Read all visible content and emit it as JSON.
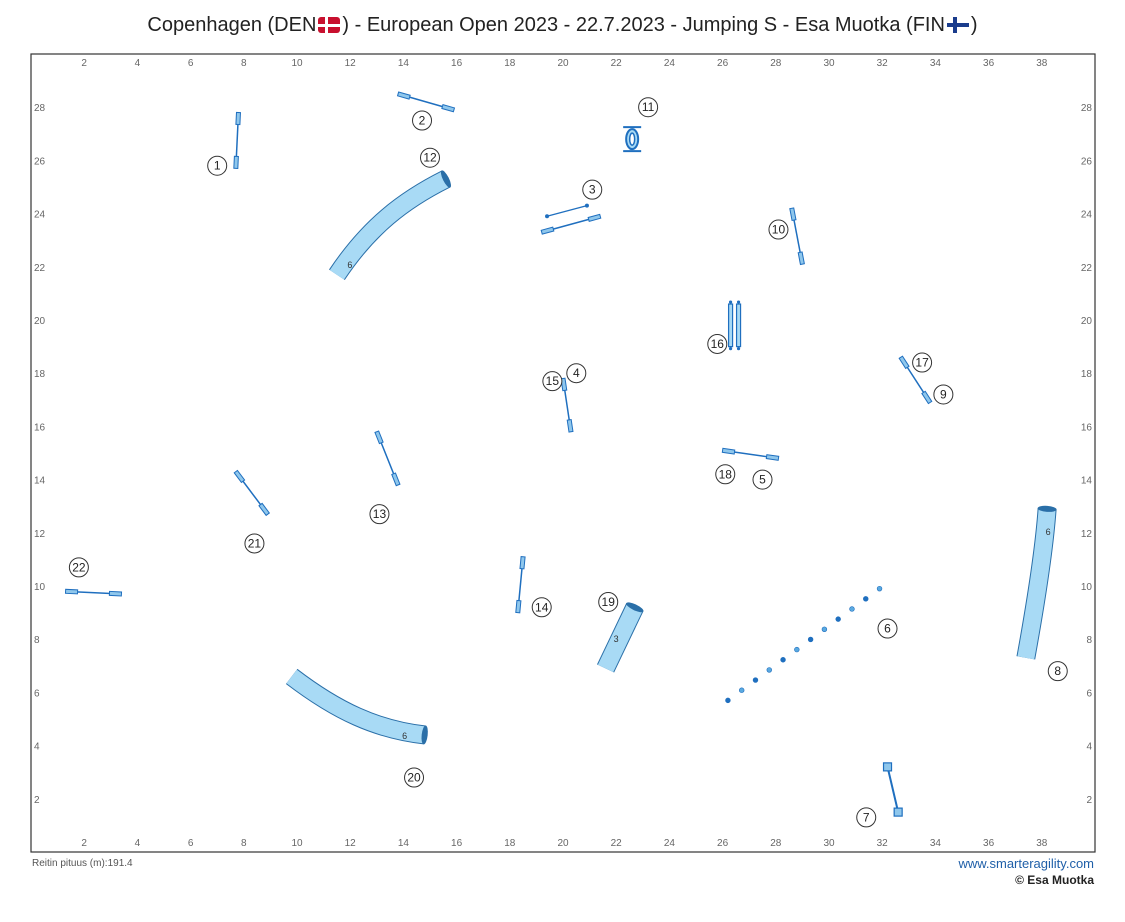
{
  "header": {
    "title_part1": "Copenhagen (DEN",
    "title_part2": ") - European Open 2023 - 22.7.2023 - Jumping S - Esa Muotka (FIN",
    "title_part3": ")",
    "flag1": "den-flag-icon",
    "flag2": "fin-flag-icon"
  },
  "colors": {
    "accent": "#1f6fbf",
    "tunnel_fill": "#a8daf5",
    "grid_border": "#333333"
  },
  "axes": {
    "x_ticks": [
      "2",
      "4",
      "6",
      "8",
      "10",
      "12",
      "14",
      "16",
      "18",
      "20",
      "22",
      "24",
      "26",
      "28",
      "30",
      "32",
      "34",
      "36",
      "38"
    ],
    "y_ticks": [
      "2",
      "4",
      "6",
      "8",
      "10",
      "12",
      "14",
      "16",
      "18",
      "20",
      "22",
      "24",
      "26",
      "28"
    ],
    "x_range": [
      0,
      40
    ],
    "y_range": [
      0,
      30
    ],
    "units": "m"
  },
  "numbers": [
    {
      "label": "1",
      "x": 7.0,
      "y": 25.8
    },
    {
      "label": "2",
      "x": 14.7,
      "y": 27.5
    },
    {
      "label": "3",
      "x": 21.1,
      "y": 24.9
    },
    {
      "label": "4",
      "x": 20.5,
      "y": 18.0
    },
    {
      "label": "5",
      "x": 27.5,
      "y": 14.0
    },
    {
      "label": "6",
      "x": 32.2,
      "y": 8.4
    },
    {
      "label": "7",
      "x": 31.4,
      "y": 1.3
    },
    {
      "label": "8",
      "x": 38.6,
      "y": 6.8
    },
    {
      "label": "9",
      "x": 34.3,
      "y": 17.2
    },
    {
      "label": "10",
      "x": 28.1,
      "y": 23.4
    },
    {
      "label": "11",
      "x": 23.2,
      "y": 28.0
    },
    {
      "label": "12",
      "x": 15.0,
      "y": 26.1
    },
    {
      "label": "13",
      "x": 13.1,
      "y": 12.7
    },
    {
      "label": "14",
      "x": 19.2,
      "y": 9.2
    },
    {
      "label": "15",
      "x": 19.6,
      "y": 17.7
    },
    {
      "label": "16",
      "x": 25.8,
      "y": 19.1
    },
    {
      "label": "17",
      "x": 33.5,
      "y": 18.4
    },
    {
      "label": "18",
      "x": 26.1,
      "y": 14.2
    },
    {
      "label": "19",
      "x": 21.7,
      "y": 9.4
    },
    {
      "label": "20",
      "x": 14.4,
      "y": 2.8
    },
    {
      "label": "21",
      "x": 8.4,
      "y": 11.6
    },
    {
      "label": "22",
      "x": 1.8,
      "y": 10.7
    }
  ],
  "jumps": [
    {
      "x1": 7.8,
      "y1": 27.8,
      "x2": 7.7,
      "y2": 25.7
    },
    {
      "x1": 13.8,
      "y1": 28.5,
      "x2": 15.9,
      "y2": 27.9
    },
    {
      "x1": 19.2,
      "y1": 23.3,
      "x2": 21.4,
      "y2": 23.9
    },
    {
      "x1": 20.0,
      "y1": 17.8,
      "x2": 20.3,
      "y2": 15.8
    },
    {
      "x1": 26.0,
      "y1": 15.1,
      "x2": 28.1,
      "y2": 14.8
    },
    {
      "x1": 28.6,
      "y1": 24.2,
      "x2": 29.0,
      "y2": 22.1
    },
    {
      "x1": 32.7,
      "y1": 18.6,
      "x2": 33.8,
      "y2": 16.9
    },
    {
      "x1": 13.0,
      "y1": 15.8,
      "x2": 13.8,
      "y2": 13.8
    },
    {
      "x1": 18.5,
      "y1": 11.1,
      "x2": 18.3,
      "y2": 9.0
    },
    {
      "x1": 7.7,
      "y1": 14.3,
      "x2": 8.9,
      "y2": 12.7
    },
    {
      "x1": 1.3,
      "y1": 9.8,
      "x2": 3.4,
      "y2": 9.7
    }
  ],
  "double_jump": {
    "x1": 19.4,
    "y1": 23.9,
    "x2": 20.9,
    "y2": 24.3
  },
  "tire": {
    "x": 22.6,
    "y": 26.8
  },
  "spread": {
    "x1": 26.3,
    "y1": 20.6,
    "x2": 26.3,
    "y2": 19.0,
    "x3": 26.6,
    "y3": 20.6,
    "x4": 26.6,
    "y4": 19.0
  },
  "table": {
    "x1": 32.2,
    "y1": 3.2,
    "x2": 32.6,
    "y2": 1.5
  },
  "weaves": {
    "x1": 26.2,
    "y1": 5.7,
    "x2": 31.9,
    "y2": 9.9,
    "count": 12
  },
  "tunnels": [
    {
      "label": "6",
      "path": [
        [
          11.5,
          21.7
        ],
        [
          12.7,
          23.5
        ],
        [
          14.0,
          24.5
        ],
        [
          15.6,
          25.3
        ]
      ]
    },
    {
      "label": "6",
      "path": [
        [
          9.8,
          6.6
        ],
        [
          11.5,
          5.3
        ],
        [
          13.0,
          4.6
        ],
        [
          14.8,
          4.4
        ]
      ]
    },
    {
      "label": "3",
      "path": [
        [
          21.6,
          6.9
        ],
        [
          22.7,
          9.2
        ]
      ]
    },
    {
      "label": "6",
      "path": [
        [
          37.4,
          7.3
        ],
        [
          37.8,
          9.5
        ],
        [
          38.1,
          11.5
        ],
        [
          38.2,
          12.9
        ]
      ]
    }
  ],
  "footer": {
    "length_label": "Reitin pituus (m):191.4",
    "site": "www.smarteragility.com",
    "copyright": "© Esa Muotka"
  }
}
